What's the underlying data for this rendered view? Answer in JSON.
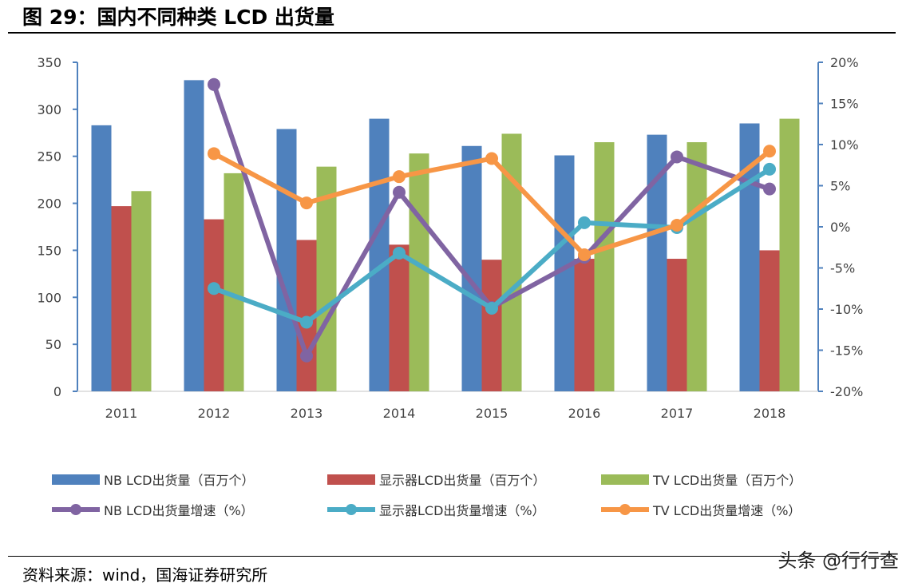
{
  "header": {
    "title": "图 29：国内不同种类 LCD 出货量"
  },
  "footer": {
    "source": "资料来源：wind，国海证券研究所",
    "watermark": "头条 @行行查"
  },
  "chart_data": {
    "type": "bar+line",
    "title": "",
    "categories": [
      "2011",
      "2012",
      "2013",
      "2014",
      "2015",
      "2016",
      "2017",
      "2018"
    ],
    "y_left": {
      "range": [
        0,
        350
      ],
      "ticks": [
        "0",
        "50",
        "100",
        "150",
        "200",
        "250",
        "300",
        "350"
      ]
    },
    "y_right": {
      "range": [
        -20,
        20
      ],
      "ticks": [
        "-20%",
        "-15%",
        "-10%",
        "-5%",
        "0%",
        "5%",
        "10%",
        "15%",
        "20%"
      ]
    },
    "grid": false,
    "legend_placement": "bottom",
    "bar_series": [
      {
        "name": "NB LCD出货量（百万个）",
        "color": "#4F81BD",
        "values": [
          283,
          331,
          279,
          290,
          261,
          251,
          273,
          285
        ]
      },
      {
        "name": "显示器LCD出货量（百万个）",
        "color": "#C0504D",
        "values": [
          197,
          183,
          161,
          156,
          140,
          141,
          141,
          150
        ]
      },
      {
        "name": "TV LCD出货量（百万个）",
        "color": "#9BBB59",
        "values": [
          213,
          232,
          239,
          253,
          274,
          265,
          265,
          290
        ]
      }
    ],
    "line_series": [
      {
        "name": "NB LCD出货量增速（%）",
        "color": "#8064A2",
        "values": [
          null,
          17.3,
          -15.7,
          4.2,
          -9.8,
          -3.7,
          8.5,
          4.6
        ]
      },
      {
        "name": "显示器LCD出货量增速（%）",
        "color": "#4BACC6",
        "values": [
          null,
          -7.5,
          -11.6,
          -3.2,
          -9.9,
          0.5,
          -0.1,
          7.0
        ]
      },
      {
        "name": "TV LCD出货量增速（%）",
        "color": "#F79646",
        "values": [
          null,
          8.9,
          2.9,
          6.1,
          8.3,
          -3.4,
          0.2,
          9.2
        ]
      }
    ]
  }
}
